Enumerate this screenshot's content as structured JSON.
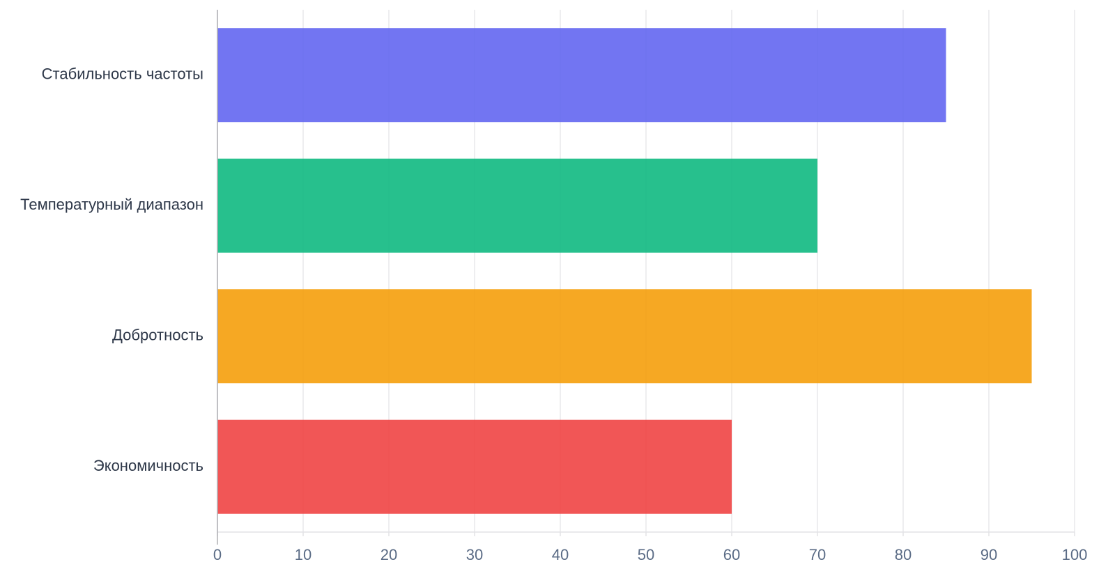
{
  "chart_data": {
    "type": "bar",
    "orientation": "horizontal",
    "categories": [
      "Стабильность частоты",
      "Температурный диапазон",
      "Добротность",
      "Экономичность"
    ],
    "values": [
      85,
      70,
      95,
      60
    ],
    "colors": [
      "#6366f1",
      "#10b981",
      "#f59e0b",
      "#ef4444"
    ],
    "xlim": [
      0,
      100
    ],
    "xticks": [
      0,
      10,
      20,
      30,
      40,
      50,
      60,
      70,
      80,
      90,
      100
    ],
    "grid": true
  }
}
